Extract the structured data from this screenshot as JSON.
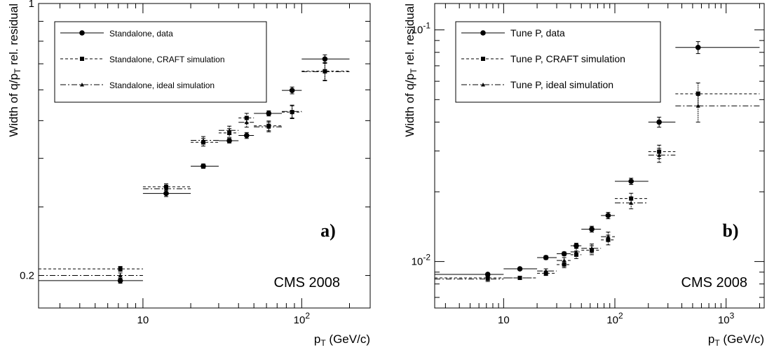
{
  "chart_data": [
    {
      "type": "scatter",
      "panel": "a)",
      "annotation": "CMS 2008",
      "ylabel": "Width of q/p",
      "ylabel_sub": "T",
      "ylabel_tail": " rel. residual",
      "xlabel": "p",
      "xlabel_sub": "T",
      "xlabel_tail": " (GeV/c)",
      "xscale": "log",
      "yscale": "log",
      "xlim": [
        2.2,
        270
      ],
      "ylim": [
        0.165,
        1.0
      ],
      "x_ticks": [
        {
          "v": 10,
          "label": "10"
        },
        {
          "v": 100,
          "label": "10",
          "sup": "2"
        }
      ],
      "y_ticks": [
        {
          "v": 0.2,
          "label": "0.2"
        },
        {
          "v": 1,
          "label": "1"
        }
      ],
      "legend_position": "top-left",
      "series": [
        {
          "name": "Standalone, data",
          "style": "solid",
          "marker": "circle",
          "points": [
            {
              "x": 7.2,
              "y": 0.194,
              "xl": 2.2,
              "xh": 10,
              "err": 0.003
            },
            {
              "x": 14,
              "y": 0.325,
              "xl": 10,
              "xh": 20,
              "err": 0.006
            },
            {
              "x": 24,
              "y": 0.382,
              "xl": 20,
              "xh": 30,
              "err": 0.005
            },
            {
              "x": 35,
              "y": 0.444,
              "xl": 30,
              "xh": 40,
              "err": 0.006
            },
            {
              "x": 45,
              "y": 0.458,
              "xl": 40,
              "xh": 50,
              "err": 0.008
            },
            {
              "x": 62,
              "y": 0.522,
              "xl": 50,
              "xh": 75,
              "err": 0.008
            },
            {
              "x": 87,
              "y": 0.598,
              "xl": 75,
              "xh": 100,
              "err": 0.012
            },
            {
              "x": 140,
              "y": 0.72,
              "xl": 100,
              "xh": 200,
              "err": 0.018
            }
          ]
        },
        {
          "name": "Standalone, CRAFT simulation",
          "style": "dashed",
          "marker": "square",
          "points": [
            {
              "x": 7.2,
              "y": 0.208,
              "xl": 2.2,
              "xh": 10,
              "err": 0.003
            },
            {
              "x": 14,
              "y": 0.338,
              "xl": 10,
              "xh": 20,
              "err": 0.006
            },
            {
              "x": 24,
              "y": 0.44,
              "xl": 20,
              "xh": 30,
              "err": 0.01
            },
            {
              "x": 35,
              "y": 0.465,
              "xl": 30,
              "xh": 40,
              "err": 0.012
            },
            {
              "x": 45,
              "y": 0.508,
              "xl": 40,
              "xh": 50,
              "err": 0.014
            },
            {
              "x": 62,
              "y": 0.485,
              "xl": 50,
              "xh": 75,
              "err": 0.014
            },
            {
              "x": 87,
              "y": 0.526,
              "xl": 75,
              "xh": 100,
              "err": 0.02
            },
            {
              "x": 140,
              "y": 0.67,
              "xl": 100,
              "xh": 200,
              "err": 0.035
            }
          ]
        },
        {
          "name": "Standalone, ideal simulation",
          "style": "dashdot",
          "marker": "triangle",
          "points": [
            {
              "x": 7.2,
              "y": 0.2,
              "xl": 2.2,
              "xh": 10,
              "err": 0.003
            },
            {
              "x": 14,
              "y": 0.334,
              "xl": 10,
              "xh": 20,
              "err": 0.006
            },
            {
              "x": 24,
              "y": 0.445,
              "xl": 20,
              "xh": 30,
              "err": 0.01
            },
            {
              "x": 35,
              "y": 0.472,
              "xl": 30,
              "xh": 40,
              "err": 0.012
            },
            {
              "x": 45,
              "y": 0.495,
              "xl": 40,
              "xh": 50,
              "err": 0.014
            },
            {
              "x": 62,
              "y": 0.482,
              "xl": 50,
              "xh": 75,
              "err": 0.014
            },
            {
              "x": 87,
              "y": 0.528,
              "xl": 75,
              "xh": 100,
              "err": 0.02
            },
            {
              "x": 140,
              "y": 0.668,
              "xl": 100,
              "xh": 200,
              "err": 0.035
            }
          ]
        }
      ]
    },
    {
      "type": "scatter",
      "panel": "b)",
      "annotation": "CMS 2008",
      "ylabel": "Width of q/p",
      "ylabel_sub": "T",
      "ylabel_tail": " rel. residual",
      "xlabel": "p",
      "xlabel_sub": "T",
      "xlabel_tail": " (GeV/c)",
      "xscale": "log",
      "yscale": "log",
      "xlim": [
        2.4,
        2200
      ],
      "ylim": [
        0.0063,
        0.13
      ],
      "x_ticks": [
        {
          "v": 10,
          "label": "10"
        },
        {
          "v": 100,
          "label": "10",
          "sup": "2"
        },
        {
          "v": 1000,
          "label": "10",
          "sup": "3"
        }
      ],
      "y_ticks": [
        {
          "v": 0.01,
          "label": "10",
          "sup": "-2"
        },
        {
          "v": 0.1,
          "label": "10",
          "sup": "-1"
        }
      ],
      "legend_position": "top-left",
      "series": [
        {
          "name": "Tune P, data",
          "style": "solid",
          "marker": "circle",
          "points": [
            {
              "x": 7.2,
              "y": 0.0088,
              "xl": 2.4,
              "xh": 10,
              "err": 0.0001
            },
            {
              "x": 14,
              "y": 0.0093,
              "xl": 10,
              "xh": 20,
              "err": 0.0001
            },
            {
              "x": 24,
              "y": 0.0104,
              "xl": 20,
              "xh": 30,
              "err": 0.0002
            },
            {
              "x": 35,
              "y": 0.0108,
              "xl": 30,
              "xh": 40,
              "err": 0.0002
            },
            {
              "x": 45,
              "y": 0.0117,
              "xl": 40,
              "xh": 50,
              "err": 0.0003
            },
            {
              "x": 62,
              "y": 0.0138,
              "xl": 50,
              "xh": 75,
              "err": 0.0004
            },
            {
              "x": 87,
              "y": 0.0158,
              "xl": 75,
              "xh": 100,
              "err": 0.0005
            },
            {
              "x": 140,
              "y": 0.0222,
              "xl": 100,
              "xh": 200,
              "err": 0.0007
            },
            {
              "x": 250,
              "y": 0.04,
              "xl": 200,
              "xh": 350,
              "err": 0.002
            },
            {
              "x": 560,
              "y": 0.084,
              "xl": 350,
              "xh": 2000,
              "err": 0.005
            }
          ]
        },
        {
          "name": "Tune P, CRAFT simulation",
          "style": "dashed",
          "marker": "square",
          "points": [
            {
              "x": 7.2,
              "y": 0.0085,
              "xl": 2.4,
              "xh": 10,
              "err": 0.0002
            },
            {
              "x": 14,
              "y": 0.0085,
              "xl": 10,
              "xh": 20,
              "err": 0.0001
            },
            {
              "x": 24,
              "y": 0.0089,
              "xl": 20,
              "xh": 30,
              "err": 0.0002
            },
            {
              "x": 35,
              "y": 0.0097,
              "xl": 30,
              "xh": 40,
              "err": 0.0003
            },
            {
              "x": 45,
              "y": 0.0107,
              "xl": 40,
              "xh": 50,
              "err": 0.0004
            },
            {
              "x": 62,
              "y": 0.0112,
              "xl": 50,
              "xh": 75,
              "err": 0.0005
            },
            {
              "x": 87,
              "y": 0.0124,
              "xl": 75,
              "xh": 100,
              "err": 0.0006
            },
            {
              "x": 140,
              "y": 0.0187,
              "xl": 100,
              "xh": 200,
              "err": 0.001
            },
            {
              "x": 250,
              "y": 0.0298,
              "xl": 200,
              "xh": 350,
              "err": 0.002
            },
            {
              "x": 560,
              "y": 0.053,
              "xl": 350,
              "xh": 2000,
              "err": 0.006
            }
          ]
        },
        {
          "name": "Tune P, ideal simulation",
          "style": "dashdot",
          "marker": "triangle",
          "points": [
            {
              "x": 7.2,
              "y": 0.0084,
              "xl": 2.4,
              "xh": 10,
              "err": 0.0002
            },
            {
              "x": 14,
              "y": 0.0085,
              "xl": 10,
              "xh": 20,
              "err": 0.0001
            },
            {
              "x": 24,
              "y": 0.0091,
              "xl": 20,
              "xh": 30,
              "err": 0.0002
            },
            {
              "x": 35,
              "y": 0.0101,
              "xl": 30,
              "xh": 40,
              "err": 0.0003
            },
            {
              "x": 45,
              "y": 0.011,
              "xl": 40,
              "xh": 50,
              "err": 0.0004
            },
            {
              "x": 62,
              "y": 0.0114,
              "xl": 50,
              "xh": 75,
              "err": 0.0005
            },
            {
              "x": 87,
              "y": 0.0128,
              "xl": 75,
              "xh": 100,
              "err": 0.0006
            },
            {
              "x": 140,
              "y": 0.0179,
              "xl": 100,
              "xh": 200,
              "err": 0.001
            },
            {
              "x": 250,
              "y": 0.0288,
              "xl": 200,
              "xh": 350,
              "err": 0.002
            },
            {
              "x": 560,
              "y": 0.047,
              "xl": 350,
              "xh": 2000,
              "err": 0.007
            }
          ]
        }
      ]
    }
  ]
}
